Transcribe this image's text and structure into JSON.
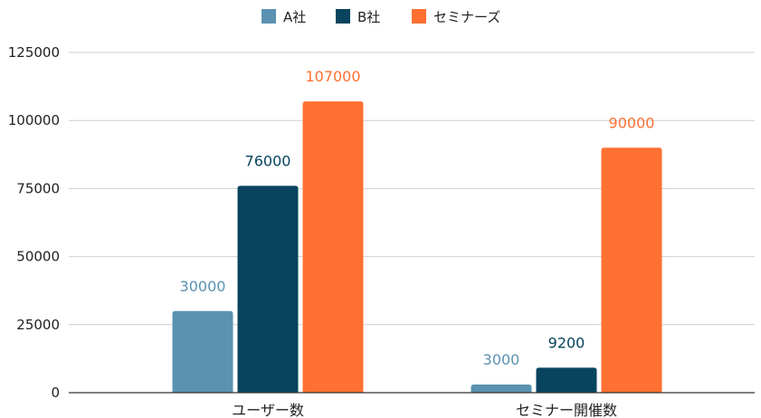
{
  "chart_data": {
    "type": "bar",
    "title": "",
    "xlabel": "",
    "ylabel": "",
    "categories": [
      "ユーザー数",
      "セミナー開催数"
    ],
    "series": [
      {
        "name": "A社",
        "values": [
          30000,
          3000
        ],
        "color": "#5b92b1"
      },
      {
        "name": "B社",
        "values": [
          76000,
          9200
        ],
        "color": "#08445e"
      },
      {
        "name": "セミナーズ",
        "values": [
          107000,
          90000
        ],
        "color": "#ff7032"
      }
    ],
    "ylim": [
      0,
      125000
    ],
    "yticks": [
      0,
      25000,
      50000,
      75000,
      100000,
      125000
    ],
    "ytick_labels": [
      "0",
      "25000",
      "50000",
      "75000",
      "100000",
      "125000"
    ],
    "data_labels": [
      [
        "30000",
        "3000"
      ],
      [
        "76000",
        "9200"
      ],
      [
        "107000",
        "90000"
      ]
    ],
    "grid": true,
    "legend_position": "top-center"
  }
}
